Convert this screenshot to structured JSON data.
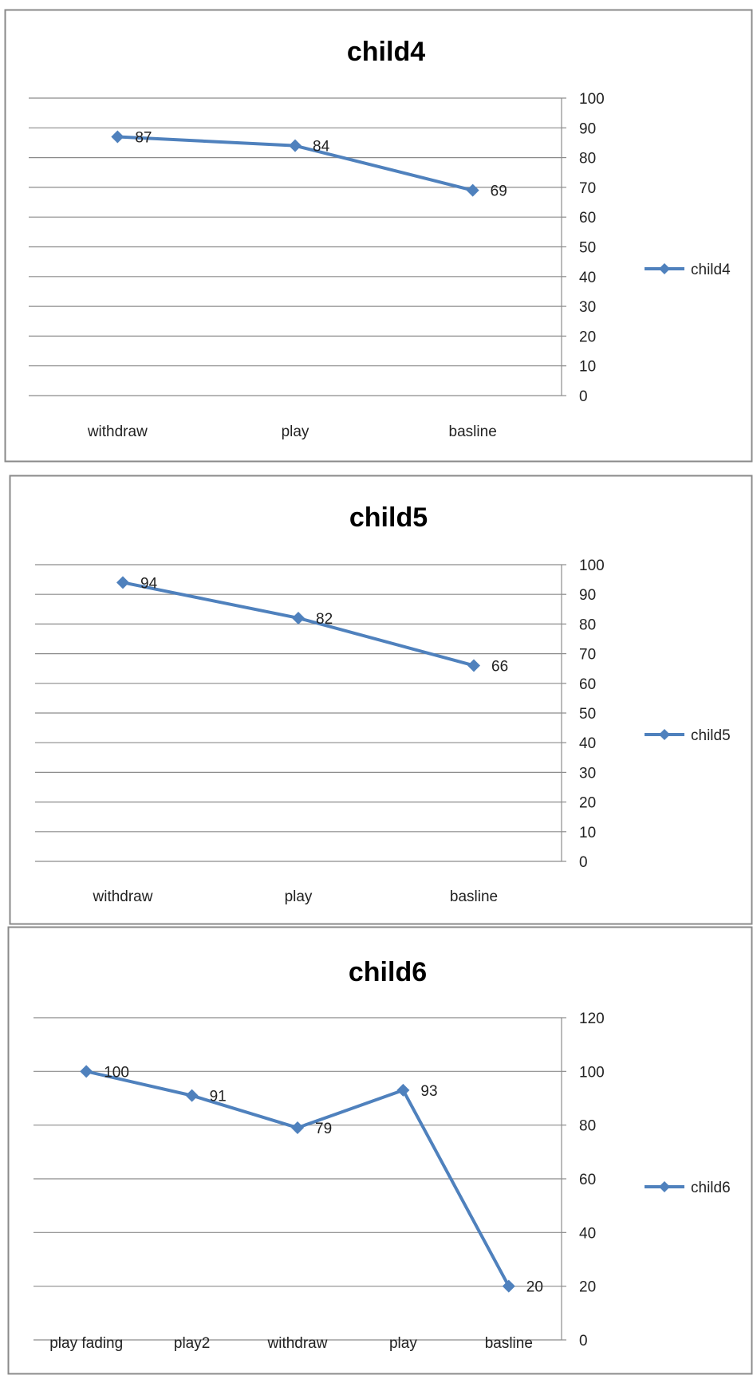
{
  "chart_data": [
    {
      "type": "line",
      "title": "child4",
      "categories": [
        "withdraw",
        "play",
        "basline"
      ],
      "series": [
        {
          "name": "child4",
          "values": [
            87,
            84,
            69
          ]
        }
      ],
      "ylim": [
        0,
        100
      ],
      "yticks": [
        0,
        10,
        20,
        30,
        40,
        50,
        60,
        70,
        80,
        90,
        100
      ],
      "grid": true,
      "y_axis_side": "right",
      "legend_position": "right",
      "color": "#4f81bd"
    },
    {
      "type": "line",
      "title": "child5",
      "categories": [
        "withdraw",
        "play",
        "basline"
      ],
      "series": [
        {
          "name": "child5",
          "values": [
            94,
            82,
            66
          ]
        }
      ],
      "ylim": [
        0,
        100
      ],
      "yticks": [
        0,
        10,
        20,
        30,
        40,
        50,
        60,
        70,
        80,
        90,
        100
      ],
      "grid": true,
      "y_axis_side": "right",
      "legend_position": "right",
      "color": "#4f81bd"
    },
    {
      "type": "line",
      "title": "child6",
      "categories": [
        "play fading",
        "play2",
        "withdraw",
        "play",
        "basline"
      ],
      "series": [
        {
          "name": "child6",
          "values": [
            100,
            91,
            79,
            93,
            20
          ]
        }
      ],
      "ylim": [
        0,
        120
      ],
      "yticks": [
        0,
        20,
        40,
        60,
        80,
        100,
        120
      ],
      "grid": true,
      "y_axis_side": "right",
      "legend_position": "right",
      "color": "#4f81bd"
    }
  ]
}
